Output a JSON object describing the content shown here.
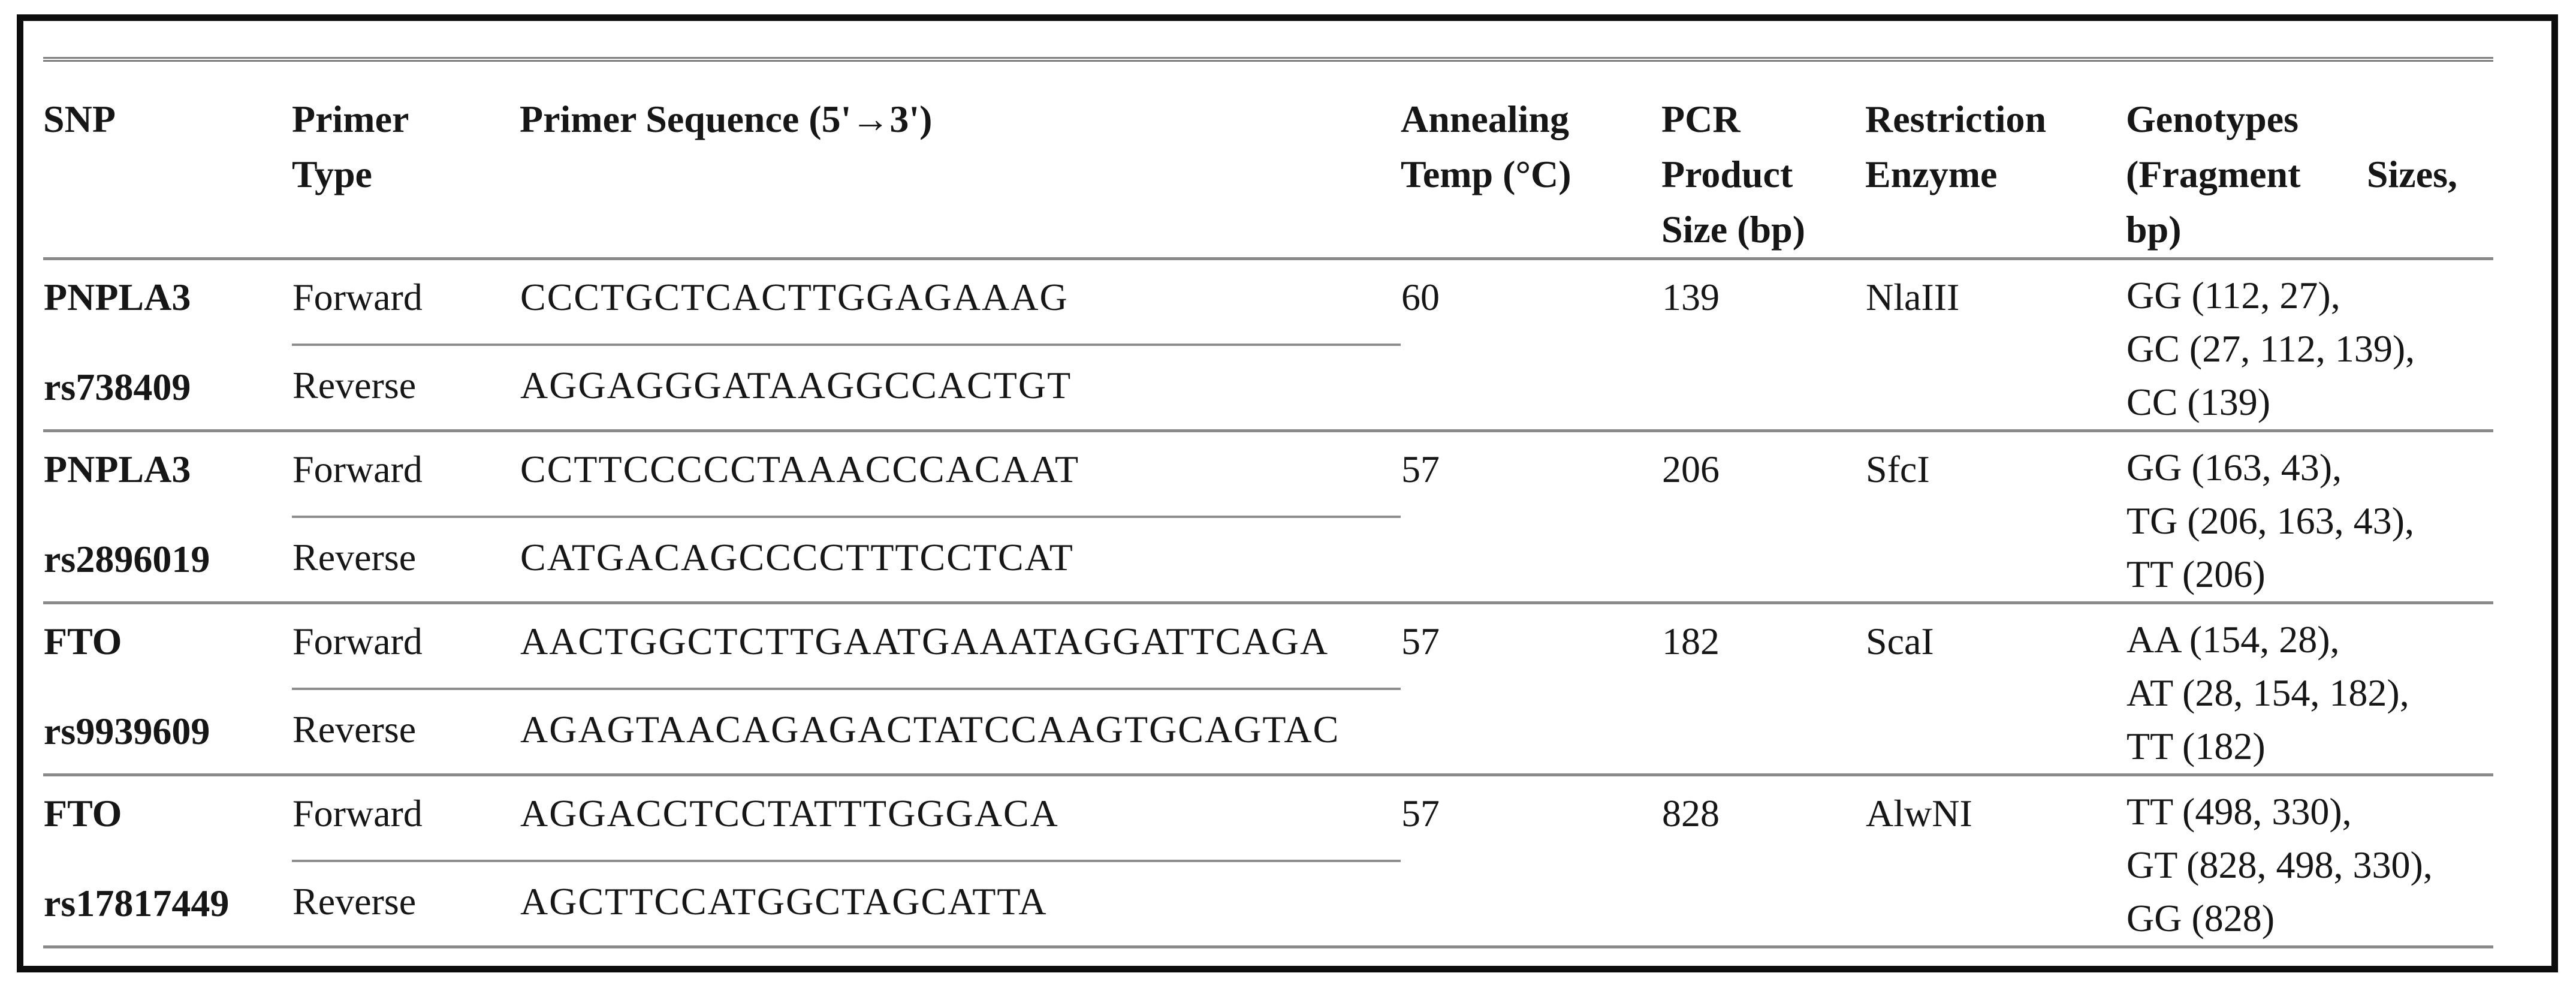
{
  "table": {
    "columns": [
      "SNP",
      "Primer Type",
      "Primer Sequence (5'→3')",
      "Annealing Temp (°C)",
      "PCR Product Size (bp)",
      "Restriction Enzyme",
      "Genotypes (Fragment Sizes, bp)"
    ],
    "primer_labels": {
      "forward": "Forward",
      "reverse": "Reverse"
    },
    "rows": [
      {
        "gene": "PNPLA3",
        "rs_id": "rs738409",
        "forward_sequence": "CCCTGCTCACTTGGAGAAAG",
        "reverse_sequence": "AGGAGGGATAAGGCCACTGT",
        "annealing_temp_c": "60",
        "pcr_product_size_bp": "139",
        "restriction_enzyme": "NlaIII",
        "genotypes": [
          "GG (112, 27),",
          "GC (27, 112, 139),",
          "CC (139)"
        ]
      },
      {
        "gene": "PNPLA3",
        "rs_id": "rs2896019",
        "forward_sequence": "CCTTCCCCCTAAACCCACAAT",
        "reverse_sequence": "CATGACAGCCCCTTTCCTCAT",
        "annealing_temp_c": "57",
        "pcr_product_size_bp": "206",
        "restriction_enzyme": "SfcI",
        "genotypes": [
          "GG (163, 43),",
          "TG (206, 163, 43),",
          "TT (206)"
        ]
      },
      {
        "gene": "FTO",
        "rs_id": "rs9939609",
        "forward_sequence": "AACTGGCTCTTGAATGAAATAGGATTCAGA",
        "reverse_sequence": "AGAGTAACAGAGACTATCCAAGTGCAGTAC",
        "annealing_temp_c": "57",
        "pcr_product_size_bp": "182",
        "restriction_enzyme": "ScaI",
        "genotypes": [
          "AA (154, 28),",
          "AT (28, 154, 182),",
          "TT (182)"
        ]
      },
      {
        "gene": "FTO",
        "rs_id": "rs17817449",
        "forward_sequence": "AGGACCTCCTATTTGGGACA",
        "reverse_sequence": "AGCTTCCATGGCTAGCATTA",
        "annealing_temp_c": "57",
        "pcr_product_size_bp": "828",
        "restriction_enzyme": "AlwNI",
        "genotypes": [
          "TT (498, 330),",
          "GT (828, 498, 330),",
          "GG (828)"
        ]
      }
    ]
  }
}
